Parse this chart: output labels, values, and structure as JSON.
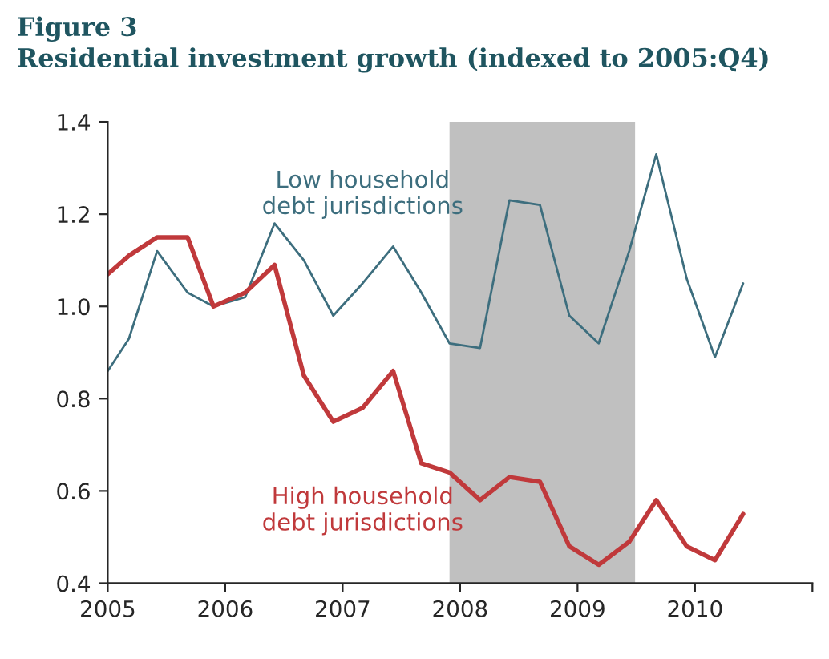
{
  "chart_data": {
    "type": "line",
    "title": "Figure 3\nResidential investment growth (indexed to 2005:Q4)",
    "series": [
      {
        "name": "Low household\ndebt jurisdictions",
        "color": "#3d6e7e",
        "x": [
          2005.0,
          2005.18,
          2005.42,
          2005.68,
          2005.9,
          2006.17,
          2006.42,
          2006.67,
          2006.92,
          2007.17,
          2007.43,
          2007.67,
          2007.91,
          2008.17,
          2008.42,
          2008.68,
          2008.93,
          2009.18,
          2009.44,
          2009.67,
          2009.93,
          2010.17,
          2010.41
        ],
        "values": [
          0.86,
          0.93,
          1.12,
          1.03,
          1.0,
          1.02,
          1.18,
          1.1,
          0.98,
          1.05,
          1.13,
          1.03,
          0.92,
          0.91,
          1.23,
          1.22,
          0.98,
          0.92,
          1.12,
          1.33,
          1.06,
          0.89,
          1.05
        ]
      },
      {
        "name": "High household\ndebt jurisdictions",
        "color": "#c0393b",
        "x": [
          2005.0,
          2005.18,
          2005.42,
          2005.68,
          2005.9,
          2006.17,
          2006.42,
          2006.67,
          2006.92,
          2007.17,
          2007.43,
          2007.67,
          2007.91,
          2008.17,
          2008.42,
          2008.68,
          2008.93,
          2009.18,
          2009.44,
          2009.67,
          2009.93,
          2010.17,
          2010.41
        ],
        "values": [
          1.07,
          1.11,
          1.15,
          1.15,
          1.0,
          1.03,
          1.09,
          0.85,
          0.75,
          0.78,
          0.86,
          0.66,
          0.64,
          0.58,
          0.63,
          0.62,
          0.48,
          0.44,
          0.49,
          0.58,
          0.48,
          0.45,
          0.55
        ]
      }
    ],
    "bands": [
      {
        "axis": "x",
        "from": 2007.91,
        "to": 2009.49,
        "color": "#c0c0c0"
      }
    ],
    "xlim": [
      2005,
      2011
    ],
    "xticks": [
      2005,
      2006,
      2007,
      2008,
      2009,
      2010,
      {
        "value": 2011,
        "label": null
      }
    ],
    "ylim": [
      0.4,
      1.4
    ],
    "yticks": [
      {
        "value": 0.4,
        "label": "0.4"
      },
      {
        "value": 0.6,
        "label": "0.6"
      },
      {
        "value": 0.8,
        "label": "0.8"
      },
      {
        "value": 1.0,
        "label": "1.0"
      },
      {
        "value": 1.2,
        "label": "1.2"
      },
      {
        "value": 1.4,
        "label": "1.4"
      }
    ],
    "grid": false,
    "legend": false,
    "marker": "none",
    "line_style": "solid"
  }
}
